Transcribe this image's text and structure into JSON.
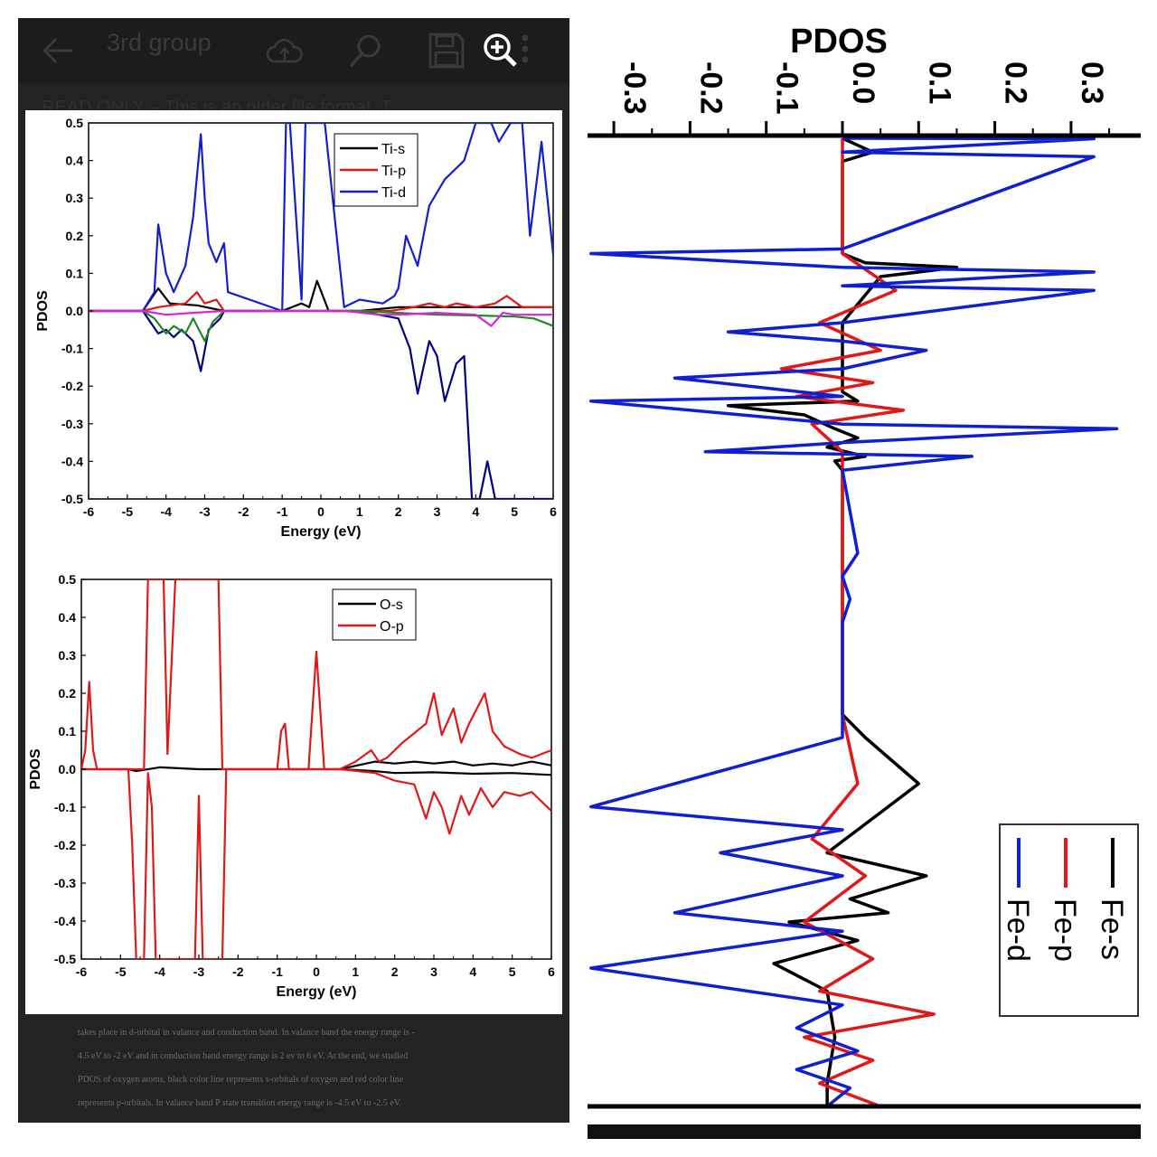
{
  "viewer": {
    "title": "3rd group",
    "readonly_banner": "READ ONLY – This is an older file format. T",
    "icons": [
      "back-arrow-icon",
      "cloud-upload-icon",
      "search-icon",
      "save-icon",
      "zoom-in-icon",
      "more-vert-icon"
    ]
  },
  "document_text": [
    "takes place in d-orbital in valance and conduction band. In valance band the energy range is -",
    "4.5 eV to -2 eV and in conduction band energy range is 2 ev to 6 eV. At the end, we studied",
    "PDOS of oxygen atoms, black color line represents s-orbitals of oxygen and red color line",
    "represents p-orbitals. In valance band P state transition energy range is -4.5 eV to -2.5 eV."
  ],
  "chart_data": [
    {
      "type": "line",
      "xlabel": "Energy (eV)",
      "ylabel": "PDOS",
      "xlim": [
        -6,
        6
      ],
      "ylim": [
        -0.5,
        0.5
      ],
      "xticks": [
        "-6",
        "-5",
        "-4",
        "-3",
        "-2",
        "-1",
        "0",
        "1",
        "2",
        "3",
        "4",
        "5",
        "6"
      ],
      "yticks": [
        "0.5",
        "0.4",
        "0.3",
        "0.2",
        "0.1",
        "0.0",
        "-0.1",
        "-0.2",
        "-0.3",
        "-0.4",
        "-0.5"
      ],
      "legend_position": "top-right",
      "series": [
        {
          "name": "Ti-s",
          "color": "#000000",
          "x": [
            -6,
            -4.6,
            -4.2,
            -3.9,
            -3.2,
            -2.5,
            -1,
            -0.5,
            -0.3,
            -0.1,
            0.2,
            1,
            2,
            3,
            4,
            5,
            6
          ],
          "y": [
            0,
            0,
            0.06,
            0.02,
            0.015,
            0,
            0,
            0.02,
            0.01,
            0.08,
            0,
            0,
            0.01,
            0.01,
            0.01,
            0.01,
            0.01
          ]
        },
        {
          "name": "Ti-p",
          "color": "#e01818",
          "x": [
            -6,
            -4.6,
            -4.2,
            -3.5,
            -3.2,
            -3,
            -2.7,
            -2.5,
            -1,
            0.6,
            1.8,
            2.4,
            2.8,
            3.2,
            3.5,
            4,
            4.5,
            4.8,
            5.2,
            5.5,
            6
          ],
          "y": [
            0,
            0,
            0.01,
            0.02,
            0.05,
            0.02,
            0.03,
            0,
            0,
            0,
            0,
            0.01,
            0.02,
            0.01,
            0.02,
            0.01,
            0.02,
            0.04,
            0.01,
            0.01,
            0.01
          ]
        },
        {
          "name": "Ti-d",
          "color": "#1020d0",
          "x": [
            -6,
            -4.6,
            -4.3,
            -4.2,
            -4,
            -3.8,
            -3.5,
            -3.3,
            -3.1,
            -3,
            -2.9,
            -2.7,
            -2.5,
            -2.4,
            -1,
            -0.9,
            -0.8,
            -0.5,
            -0.4,
            -0.2,
            0,
            0.1,
            0.6,
            1,
            1.6,
            1.9,
            2,
            2.2,
            2.5,
            2.8,
            3.2,
            3.7,
            4,
            4.4,
            4.6,
            4.9,
            5.2,
            5.4,
            5.7,
            6
          ],
          "y": [
            0,
            0,
            0.05,
            0.23,
            0.1,
            0.05,
            0.12,
            0.25,
            0.47,
            0.3,
            0.18,
            0.13,
            0.18,
            0.05,
            0,
            0.5,
            0.5,
            0.03,
            0.5,
            0.5,
            0.5,
            0.5,
            0.01,
            0.03,
            0.02,
            0.04,
            0.06,
            0.2,
            0.12,
            0.28,
            0.35,
            0.4,
            0.5,
            0.5,
            0.45,
            0.5,
            0.5,
            0.2,
            0.45,
            0.15
          ]
        },
        {
          "name": "",
          "color": "#000080",
          "x": [
            -6,
            -4.6,
            -4.4,
            -4.2,
            -4,
            -3.8,
            -3.6,
            -3.3,
            -3.1,
            -2.9,
            -2.6,
            -2.5,
            1,
            2,
            2.3,
            2.5,
            2.8,
            3,
            3.2,
            3.5,
            3.7,
            3.9,
            4,
            4.1,
            4.3,
            4.5,
            4.6,
            4.7,
            5,
            6
          ],
          "y": [
            0,
            0,
            -0.03,
            -0.06,
            -0.05,
            -0.07,
            -0.05,
            -0.08,
            -0.16,
            -0.05,
            -0.02,
            0,
            0,
            -0.02,
            -0.1,
            -0.22,
            -0.08,
            -0.12,
            -0.24,
            -0.14,
            -0.12,
            -0.5,
            -0.5,
            -0.5,
            -0.4,
            -0.5,
            -0.5,
            -0.5,
            -0.5,
            -0.5
          ]
        },
        {
          "name": "",
          "color": "#218a21",
          "x": [
            -6,
            -4.6,
            -4.3,
            -4,
            -3.8,
            -3.5,
            -3.3,
            -3,
            -2.8,
            -2.5,
            1,
            2,
            3,
            4,
            5,
            5.5,
            6
          ],
          "y": [
            0,
            0,
            -0.02,
            -0.06,
            -0.04,
            -0.06,
            -0.02,
            -0.08,
            -0.03,
            0,
            0,
            -0.005,
            -0.01,
            -0.012,
            -0.015,
            -0.02,
            -0.04
          ]
        },
        {
          "name": "",
          "color": "#e020e0",
          "x": [
            -6,
            -4.6,
            -4,
            -3.3,
            -2.5,
            0.6,
            1.5,
            2,
            3,
            4,
            4.4,
            4.7,
            5,
            6
          ],
          "y": [
            0,
            0,
            -0.01,
            -0.005,
            0,
            0,
            -0.01,
            -0.01,
            -0.005,
            -0.01,
            -0.04,
            -0.005,
            -0.01,
            -0.01
          ]
        }
      ]
    },
    {
      "type": "line",
      "xlabel": "Energy (eV)",
      "ylabel": "PDOS",
      "xlim": [
        -6,
        6
      ],
      "ylim": [
        -0.5,
        0.5
      ],
      "xticks": [
        "-6",
        "-5",
        "-4",
        "-3",
        "-2",
        "-1",
        "0",
        "1",
        "2",
        "3",
        "4",
        "5",
        "6"
      ],
      "yticks": [
        "0.5",
        "0.4",
        "0.3",
        "0.2",
        "0.1",
        "0.0",
        "-0.1",
        "-0.2",
        "-0.3",
        "-0.4",
        "-0.5"
      ],
      "legend_position": "top-right",
      "series": [
        {
          "name": "O-s",
          "color": "#000000",
          "x": [
            -6,
            -4.8,
            -4.6,
            -4,
            -3,
            -2.5,
            0.6,
            1.5,
            2,
            2.5,
            3,
            3.5,
            4,
            4.5,
            5,
            5.5,
            6
          ],
          "y": [
            0,
            0,
            -0.005,
            0.005,
            0,
            0,
            0,
            0.02,
            0.015,
            0.02,
            0.015,
            0.02,
            0.01,
            0.015,
            0.01,
            0.02,
            0.01
          ]
        },
        {
          "name": "",
          "color": "#000000",
          "x": [
            0.6,
            1.5,
            2,
            3,
            4,
            5,
            6
          ],
          "y": [
            0,
            -0.005,
            -0.01,
            -0.008,
            -0.012,
            -0.01,
            -0.015
          ]
        },
        {
          "name": "O-p",
          "color": "#e01818",
          "x": [
            -6,
            -5.9,
            -5.8,
            -5.7,
            -5.6,
            -4.4,
            -4.3,
            -4.1,
            -4,
            -3.9,
            -3.8,
            -3.6,
            -3.3,
            -3.1,
            -2.9,
            -2.5,
            -2.4,
            -1,
            -0.9,
            -0.8,
            -0.7,
            -0.2,
            0,
            0.2,
            0.6,
            1,
            1.4,
            1.6,
            1.8,
            2.2,
            2.8,
            3,
            3.2,
            3.5,
            3.7,
            3.9,
            4.3,
            4.5,
            4.8,
            5.2,
            5.5,
            6
          ],
          "y": [
            0,
            0.05,
            0.23,
            0.05,
            0,
            0,
            0.5,
            0.5,
            0.5,
            0.5,
            0.04,
            0.5,
            0.5,
            0.5,
            0.5,
            0.5,
            0,
            0,
            0.1,
            0.12,
            0,
            0,
            0.31,
            0,
            0,
            0.02,
            0.05,
            0.02,
            0.03,
            0.07,
            0.12,
            0.2,
            0.09,
            0.16,
            0.07,
            0.12,
            0.2,
            0.1,
            0.06,
            0.04,
            0.03,
            0.05
          ]
        },
        {
          "name": "",
          "color": "#e01818",
          "x": [
            -6,
            -4.8,
            -4.7,
            -4.6,
            -4.4,
            -4.3,
            -4.2,
            -4.1,
            -4,
            -3.1,
            -3,
            -2.9,
            -2.7,
            -2.6,
            -2.5,
            -2.4,
            -2.3,
            0.6,
            1.5,
            2,
            2.5,
            2.8,
            3,
            3.2,
            3.4,
            3.7,
            3.9,
            4.2,
            4.5,
            4.8,
            5.2,
            5.5,
            6
          ],
          "y": [
            0,
            0,
            -0.2,
            -0.5,
            -0.5,
            -0.01,
            -0.1,
            -0.5,
            -0.5,
            -0.5,
            -0.07,
            -0.5,
            -0.5,
            -0.5,
            -0.5,
            -0.5,
            0,
            0,
            -0.01,
            -0.03,
            -0.04,
            -0.13,
            -0.06,
            -0.1,
            -0.17,
            -0.07,
            -0.12,
            -0.05,
            -0.1,
            -0.06,
            -0.07,
            -0.06,
            -0.11
          ]
        }
      ]
    },
    {
      "type": "line",
      "orientation": "rotated",
      "title": "PDOS",
      "xticks": [
        "-0.3",
        "-0.2",
        "-0.1",
        "0.0",
        "0.1",
        "0.2",
        "0.3"
      ],
      "xlim": [
        -0.33,
        0.38
      ],
      "legend_position": "bottom-right",
      "series": [
        {
          "name": "Fe-s",
          "color": "#000000",
          "x": [
            0,
            0.04,
            0,
            0,
            0.03,
            0.15,
            0.05,
            0,
            0,
            0.02,
            -0.15,
            -0.05,
            -0.01,
            0.02,
            -0.02,
            0.03,
            -0.01,
            0,
            0,
            0.03,
            0.1,
            0.06,
            -0.02,
            0.11,
            0.01,
            0.06,
            -0.07,
            0.02,
            -0.09,
            -0.02,
            -0.01,
            -0.02,
            -0.02
          ],
          "y": [
            0,
            0.03,
            0.05,
            0.25,
            0.27,
            0.28,
            0.3,
            0.4,
            0.55,
            0.57,
            0.58,
            0.6,
            0.63,
            0.65,
            0.67,
            0.69,
            0.7,
            0.72,
            1.25,
            1.3,
            1.4,
            1.45,
            1.55,
            1.6,
            1.65,
            1.68,
            1.7,
            1.74,
            1.79,
            1.85,
            1.95,
            2.05,
            2.1
          ]
        },
        {
          "name": "Fe-p",
          "color": "#e01818",
          "x": [
            0,
            0,
            0.07,
            -0.03,
            0.05,
            -0.08,
            0.04,
            -0.06,
            0.08,
            -0.04,
            0,
            0,
            0.02,
            -0.04,
            0.03,
            -0.05,
            0.04,
            -0.03,
            0.12,
            -0.05,
            0.04,
            -0.03,
            0.05
          ],
          "y": [
            0,
            0.25,
            0.33,
            0.4,
            0.46,
            0.5,
            0.53,
            0.56,
            0.59,
            0.62,
            0.68,
            1.25,
            1.4,
            1.52,
            1.6,
            1.7,
            1.78,
            1.85,
            1.9,
            1.95,
            2.0,
            2.05,
            2.1
          ]
        },
        {
          "name": "Fe-d",
          "color": "#1020d0",
          "x": [
            0,
            0.33,
            0,
            0.33,
            0,
            -0.33,
            0,
            0.33,
            0,
            0.33,
            0,
            -0.15,
            0,
            0.11,
            0,
            -0.22,
            0,
            -0.33,
            0,
            0.36,
            0,
            -0.18,
            0.17,
            0,
            0.02,
            0,
            0.01,
            0,
            0,
            -0.33,
            0,
            -0.16,
            0,
            -0.22,
            0,
            -0.33,
            0,
            -0.06,
            0.02,
            -0.06,
            0.01,
            -0.02
          ],
          "y": [
            0,
            0.001,
            0.03,
            0.04,
            0.24,
            0.25,
            0.28,
            0.29,
            0.32,
            0.33,
            0.4,
            0.42,
            0.44,
            0.46,
            0.5,
            0.52,
            0.56,
            0.57,
            0.62,
            0.63,
            0.66,
            0.68,
            0.69,
            0.72,
            0.9,
            0.95,
            1.0,
            1.05,
            1.3,
            1.45,
            1.5,
            1.55,
            1.6,
            1.68,
            1.72,
            1.8,
            1.88,
            1.93,
            1.98,
            2.02,
            2.06,
            2.1
          ]
        }
      ]
    }
  ]
}
